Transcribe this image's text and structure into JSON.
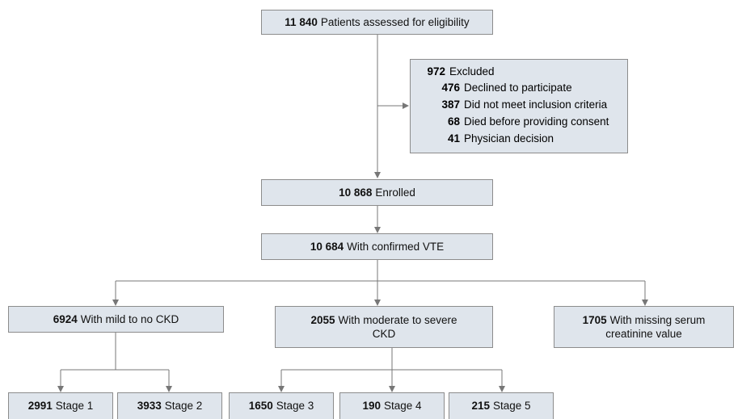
{
  "nodes": [
    {
      "count": "11 840",
      "label": "Patients assessed for eligibility"
    },
    {
      "count": "10 868",
      "label": "Enrolled"
    },
    {
      "count": "10 684",
      "label": "With confirmed VTE"
    },
    {
      "count": "6924",
      "label": "With mild to no CKD"
    },
    {
      "count": "2055",
      "label": "With moderate to severe CKD"
    },
    {
      "count": "1705",
      "label": "With missing serum creatinine value"
    },
    {
      "count": "2991",
      "label": "Stage 1"
    },
    {
      "count": "3933",
      "label": "Stage 2"
    },
    {
      "count": "1650",
      "label": "Stage 3"
    },
    {
      "count": "190",
      "label": "Stage 4"
    },
    {
      "count": "215",
      "label": "Stage 5"
    }
  ],
  "excluded": {
    "count": "972",
    "label": "Excluded",
    "reasons": [
      {
        "count": "476",
        "label": "Declined to participate"
      },
      {
        "count": "387",
        "label": "Did not meet inclusion criteria"
      },
      {
        "count": "68",
        "label": "Died before providing consent"
      },
      {
        "count": "41",
        "label": "Physician decision"
      }
    ]
  }
}
